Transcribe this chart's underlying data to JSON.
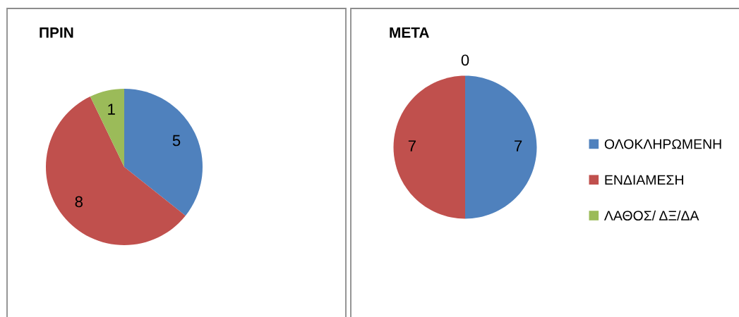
{
  "chart_data": [
    {
      "type": "pie",
      "title": "ΠΡΙΝ",
      "categories": [
        null,
        null,
        null
      ],
      "values": [
        5,
        8,
        1
      ],
      "colors": [
        "#4f81bd",
        "#c0504d",
        "#9bbb59"
      ],
      "data_labels": true
    },
    {
      "type": "pie",
      "title": "ΜΕΤΑ",
      "categories": [
        "ΟΛΟΚΛΗΡΩΜΕΝΗ",
        "ΕΝΔΙΑΜΕΣΗ",
        "ΛΑΘΟΣ/ ΔΞ/ΔΑ"
      ],
      "values": [
        7,
        7,
        0
      ],
      "value_labels": [
        "7",
        "7",
        "0"
      ],
      "colors": [
        "#4f81bd",
        "#c0504d",
        "#9bbb59"
      ],
      "legend": "right"
    }
  ]
}
